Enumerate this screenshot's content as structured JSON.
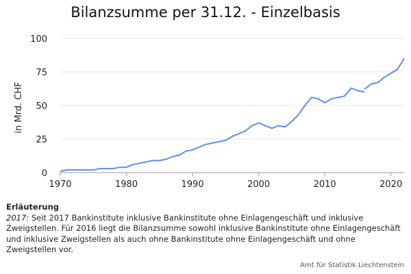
{
  "chart_data": {
    "type": "line",
    "title": "Bilanzsumme per 31.12. - Einzelbasis",
    "xlabel": "",
    "ylabel": "in Mrd. CHF",
    "xlim": [
      1970,
      2022
    ],
    "ylim": [
      0,
      100
    ],
    "x_ticks": [
      1970,
      1980,
      1990,
      2000,
      2010,
      2020
    ],
    "y_ticks": [
      0,
      25,
      50,
      75,
      100
    ],
    "grid": true,
    "legend": "none",
    "line_color": "#5b8def",
    "segments": [
      {
        "x": [
          1970,
          1971,
          1972,
          1973,
          1974,
          1975,
          1976,
          1977,
          1978,
          1979,
          1980,
          1981,
          1982,
          1983,
          1984,
          1985,
          1986,
          1987,
          1988,
          1989,
          1990,
          1991,
          1992,
          1993,
          1994,
          1995,
          1996,
          1997,
          1998,
          1999,
          2000,
          2001,
          2002,
          2003,
          2004,
          2005,
          2006,
          2007,
          2008,
          2009,
          2010,
          2011,
          2012,
          2013,
          2014,
          2015,
          2016
        ],
        "y": [
          1,
          2,
          2,
          2,
          2,
          2,
          3,
          3,
          3,
          4,
          4,
          6,
          7,
          8,
          9,
          9,
          10,
          12,
          13,
          16,
          17,
          19,
          21,
          22,
          23,
          24,
          27,
          29,
          31,
          35,
          37,
          35,
          33,
          35,
          34,
          38,
          43,
          50,
          56,
          55,
          52,
          55,
          56,
          57,
          63,
          61,
          60
        ]
      },
      {
        "x": [
          2016,
          2017,
          2018,
          2019,
          2020,
          2021,
          2022
        ],
        "y": [
          62,
          66,
          67,
          71,
          74,
          77,
          85
        ]
      }
    ]
  },
  "note": {
    "heading": "Erläuterung",
    "year_label": "2017:",
    "lines": [
      "Seit 2017 Bankinstitute inklusive Bankinstitute ohne Einlagengeschäft und inklusive",
      "Zweigstellen. Für 2016 liegt die Bilanzsumme sowohl inklusive Bankinstitute ohne Einlagengeschäft",
      "und inklusive Zweigstellen als auch ohne Bankinstitute ohne Einlagengeschäft und ohne",
      "Zweigstellen vor."
    ]
  },
  "source": "Amt für Statistik Liechtenstein"
}
